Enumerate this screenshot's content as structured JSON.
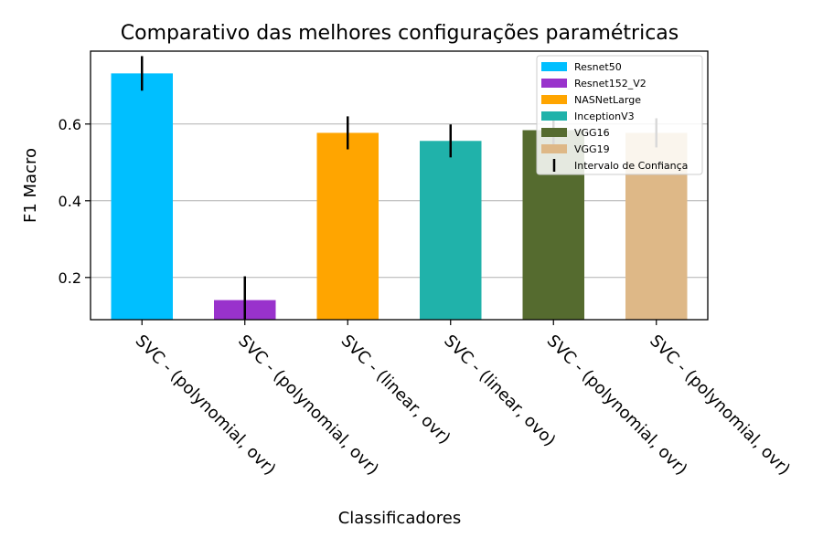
{
  "chart_data": {
    "type": "bar",
    "title": "Comparativo das melhores configurações paramétricas",
    "xlabel": "Classificadores",
    "ylabel": "F1 Macro",
    "ylim": [
      0.09,
      0.79
    ],
    "yticks": [
      0.2,
      0.4,
      0.6
    ],
    "ytick_labels": [
      "0.2",
      "0.4",
      "0.6"
    ],
    "grid": "y",
    "categories": [
      "SVC - (polynomial, ovr)",
      "SVC - (polynomial, ovr)",
      "SVC - (linear, ovr)",
      "SVC - (linear, ovo)",
      "SVC - (polynomial, ovr)",
      "SVC - (polynomial, ovr)"
    ],
    "series": [
      {
        "name": "Resnet50",
        "value": 0.732,
        "error": 0.045,
        "color": "#00bfff"
      },
      {
        "name": "Resnet152_V2",
        "value": 0.141,
        "error": 0.062,
        "color": "#9932cc"
      },
      {
        "name": "NASNetLarge",
        "value": 0.577,
        "error": 0.043,
        "color": "#ffa500"
      },
      {
        "name": "InceptionV3",
        "value": 0.556,
        "error": 0.043,
        "color": "#20b2aa"
      },
      {
        "name": "VGG16",
        "value": 0.584,
        "error": 0.04,
        "color": "#556b2f"
      },
      {
        "name": "VGG19",
        "value": 0.577,
        "error": 0.038,
        "color": "#deb887"
      }
    ],
    "errorbar_label": "Intervalo de Confiança",
    "legend_position": "upper right"
  }
}
